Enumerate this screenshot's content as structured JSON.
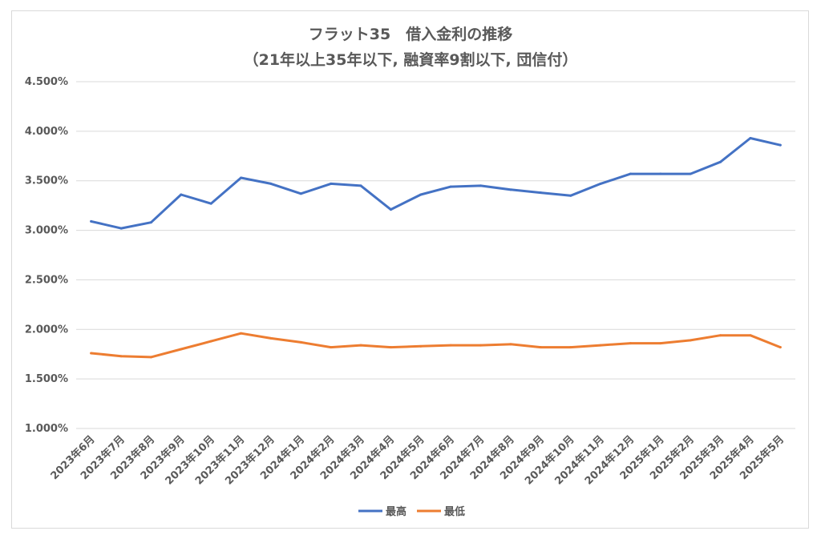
{
  "chart_data": {
    "type": "line",
    "title": "フラット35　借入金利の推移",
    "subtitle": "（21年以上35年以下, 融資率9割以下, 団信付）",
    "xlabel": "",
    "ylabel": "",
    "ylim": [
      1.0,
      4.5
    ],
    "yticks": [
      "1.000%",
      "1.500%",
      "2.000%",
      "2.500%",
      "3.000%",
      "3.500%",
      "4.000%",
      "4.500%"
    ],
    "grid": true,
    "legend": "bottom",
    "categories": [
      "2023年6月",
      "2023年7月",
      "2023年8月",
      "2023年9月",
      "2023年10月",
      "2023年11月",
      "2023年12月",
      "2024年1月",
      "2024年2月",
      "2024年3月",
      "2024年4月",
      "2024年5月",
      "2024年6月",
      "2024年7月",
      "2024年8月",
      "2024年9月",
      "2024年10月",
      "2024年11月",
      "2024年12月",
      "2025年1月",
      "2025年2月",
      "2025年3月",
      "2025年4月",
      "2025年5月"
    ],
    "series": [
      {
        "name": "最高",
        "color": "#4472c4",
        "values": [
          3.09,
          3.02,
          3.08,
          3.36,
          3.27,
          3.53,
          3.47,
          3.37,
          3.47,
          3.45,
          3.21,
          3.36,
          3.44,
          3.45,
          3.41,
          3.38,
          3.35,
          3.47,
          3.57,
          3.57,
          3.57,
          3.69,
          3.93,
          3.86
        ]
      },
      {
        "name": "最低",
        "color": "#ed7d31",
        "values": [
          1.76,
          1.73,
          1.72,
          1.8,
          1.88,
          1.96,
          1.91,
          1.87,
          1.82,
          1.84,
          1.82,
          1.83,
          1.84,
          1.84,
          1.85,
          1.82,
          1.82,
          1.84,
          1.86,
          1.86,
          1.89,
          1.94,
          1.94,
          1.82
        ]
      }
    ]
  }
}
